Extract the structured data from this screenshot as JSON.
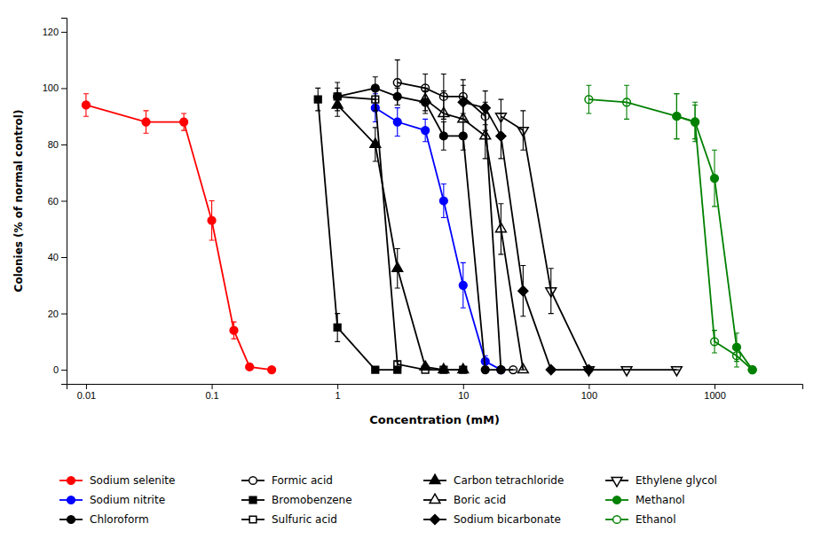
{
  "chart_data": {
    "type": "line",
    "xlabel": "Concentration (mM)",
    "ylabel": "Colonies (% of normal control)",
    "log": "x",
    "xlim": [
      0.007,
      5000
    ],
    "xticks": [
      0.01,
      0.1,
      1,
      10,
      100,
      1000
    ],
    "ylim": [
      -5,
      125
    ],
    "yticks": [
      0,
      20,
      40,
      60,
      80,
      100,
      120
    ],
    "grid": false,
    "legend": "bottom",
    "series": [
      {
        "name": "Sodium selenite",
        "color": "red",
        "marker": "circle",
        "x": [
          0.01,
          0.03,
          0.06,
          0.1,
          0.15,
          0.2,
          0.3
        ],
        "values": [
          94,
          88,
          88,
          53,
          14,
          1,
          0
        ],
        "errors": [
          4,
          4,
          3,
          7,
          3,
          1,
          0
        ]
      },
      {
        "name": "Sodium nitrite",
        "color": "blue",
        "marker": "circle",
        "x": [
          2,
          3,
          5,
          7,
          10,
          15,
          20
        ],
        "values": [
          93,
          88,
          85,
          60,
          30,
          3,
          0
        ],
        "errors": [
          5,
          5,
          4,
          6,
          8,
          2,
          0
        ]
      },
      {
        "name": "Chloroform",
        "color": "black",
        "marker": "circle",
        "x": [
          1,
          2,
          3,
          5,
          7,
          10,
          15,
          20
        ],
        "values": [
          97,
          100,
          97,
          95,
          83,
          83,
          0,
          0
        ],
        "errors": [
          3,
          4,
          3,
          4,
          5,
          5,
          0,
          0
        ]
      },
      {
        "name": "Formic acid",
        "color": "black",
        "marker": "circle-open",
        "x": [
          3,
          5,
          7,
          10,
          15,
          20,
          25
        ],
        "values": [
          102,
          100,
          97,
          97,
          90,
          0,
          0
        ],
        "errors": [
          8,
          5,
          8,
          6,
          5,
          0,
          0
        ]
      },
      {
        "name": "Bromobenzene",
        "color": "black",
        "marker": "square",
        "x": [
          0.7,
          1.0,
          2.0,
          3.0
        ],
        "values": [
          96,
          15,
          0,
          0
        ],
        "errors": [
          4,
          5,
          0,
          0
        ]
      },
      {
        "name": "Sulfuric acid",
        "color": "black",
        "marker": "square-open",
        "x": [
          1,
          2,
          3,
          5,
          7,
          10
        ],
        "values": [
          97,
          96,
          2,
          0,
          0,
          0
        ],
        "errors": [
          5,
          4,
          1,
          0,
          0,
          0
        ]
      },
      {
        "name": "Carbon tetrachloride",
        "color": "black",
        "marker": "triangle-up",
        "x": [
          1,
          2,
          3,
          5,
          7,
          10
        ],
        "values": [
          94,
          80,
          36,
          1,
          0,
          0
        ],
        "errors": [
          4,
          6,
          7,
          1,
          0,
          0
        ]
      },
      {
        "name": "Boric acid",
        "color": "black",
        "marker": "triangle-up-open",
        "x": [
          5,
          7,
          10,
          15,
          20,
          30
        ],
        "values": [
          96,
          91,
          89,
          83,
          50,
          0
        ],
        "errors": [
          4,
          8,
          7,
          8,
          9,
          0
        ]
      },
      {
        "name": "Sodium bicarbonate",
        "color": "black",
        "marker": "diamond",
        "x": [
          10,
          15,
          20,
          30,
          50,
          100
        ],
        "values": [
          95,
          93,
          83,
          28,
          0,
          0
        ],
        "errors": [
          6,
          6,
          8,
          9,
          0,
          0
        ]
      },
      {
        "name": "Ethylene glycol",
        "color": "black",
        "marker": "triangle-down-open",
        "x": [
          20,
          30,
          50,
          100,
          200,
          500
        ],
        "values": [
          90,
          85,
          28,
          0,
          0,
          0
        ],
        "errors": [
          6,
          7,
          8,
          0,
          0,
          0
        ]
      },
      {
        "name": "Methanol",
        "color": "green",
        "marker": "circle",
        "x": [
          500,
          700,
          1000,
          1500,
          2000
        ],
        "values": [
          90,
          88,
          68,
          8,
          0
        ],
        "errors": [
          8,
          6,
          10,
          5,
          0
        ]
      },
      {
        "name": "Ethanol",
        "color": "green",
        "marker": "circle-open",
        "x": [
          100,
          200,
          500,
          700,
          1000,
          1500,
          2000
        ],
        "values": [
          96,
          95,
          90,
          88,
          10,
          5,
          0
        ],
        "errors": [
          5,
          6,
          8,
          7,
          4,
          4,
          0
        ]
      }
    ]
  }
}
